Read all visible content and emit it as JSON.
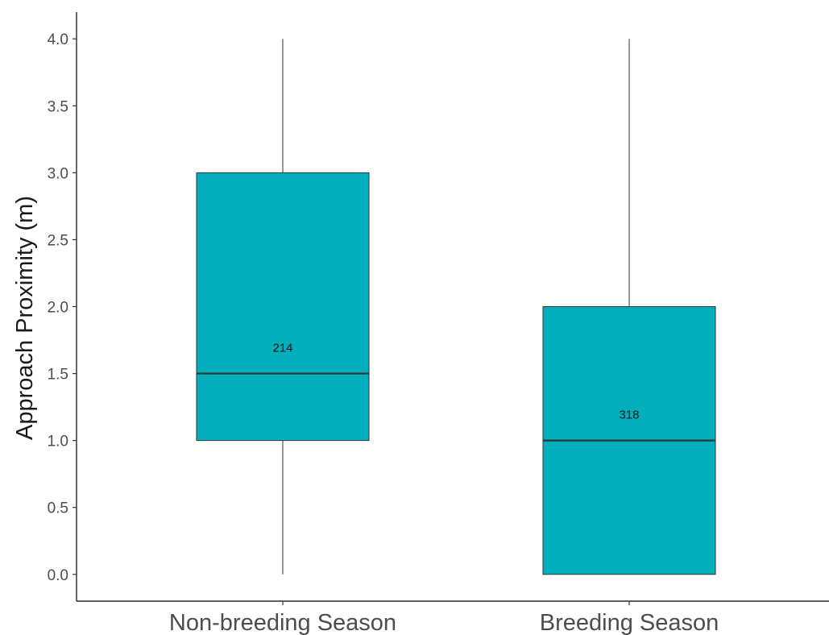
{
  "chart_data": {
    "type": "boxplot",
    "title": "",
    "xlabel": "",
    "ylabel": "Approach Proximity (m)",
    "ylim": [
      -0.2,
      4.2
    ],
    "yticks": [
      0.0,
      0.5,
      1.0,
      1.5,
      2.0,
      2.5,
      3.0,
      3.5,
      4.0
    ],
    "ytick_labels": [
      "0.0",
      "0.5",
      "1.0",
      "1.5",
      "2.0",
      "2.5",
      "3.0",
      "3.5",
      "4.0"
    ],
    "categories": [
      "Non-breeding Season",
      "Breeding Season"
    ],
    "grid": false,
    "fill_color": "#00AFBB",
    "boxes": [
      {
        "category": "Non-breeding Season",
        "min": 0.0,
        "q1": 1.0,
        "median": 1.5,
        "q3": 3.0,
        "max": 4.0,
        "n_label": "214",
        "label_y": 1.7
      },
      {
        "category": "Breeding Season",
        "min": 0.0,
        "q1": 0.0,
        "median": 1.0,
        "q3": 2.0,
        "max": 4.0,
        "n_label": "318",
        "label_y": 1.2
      }
    ]
  }
}
